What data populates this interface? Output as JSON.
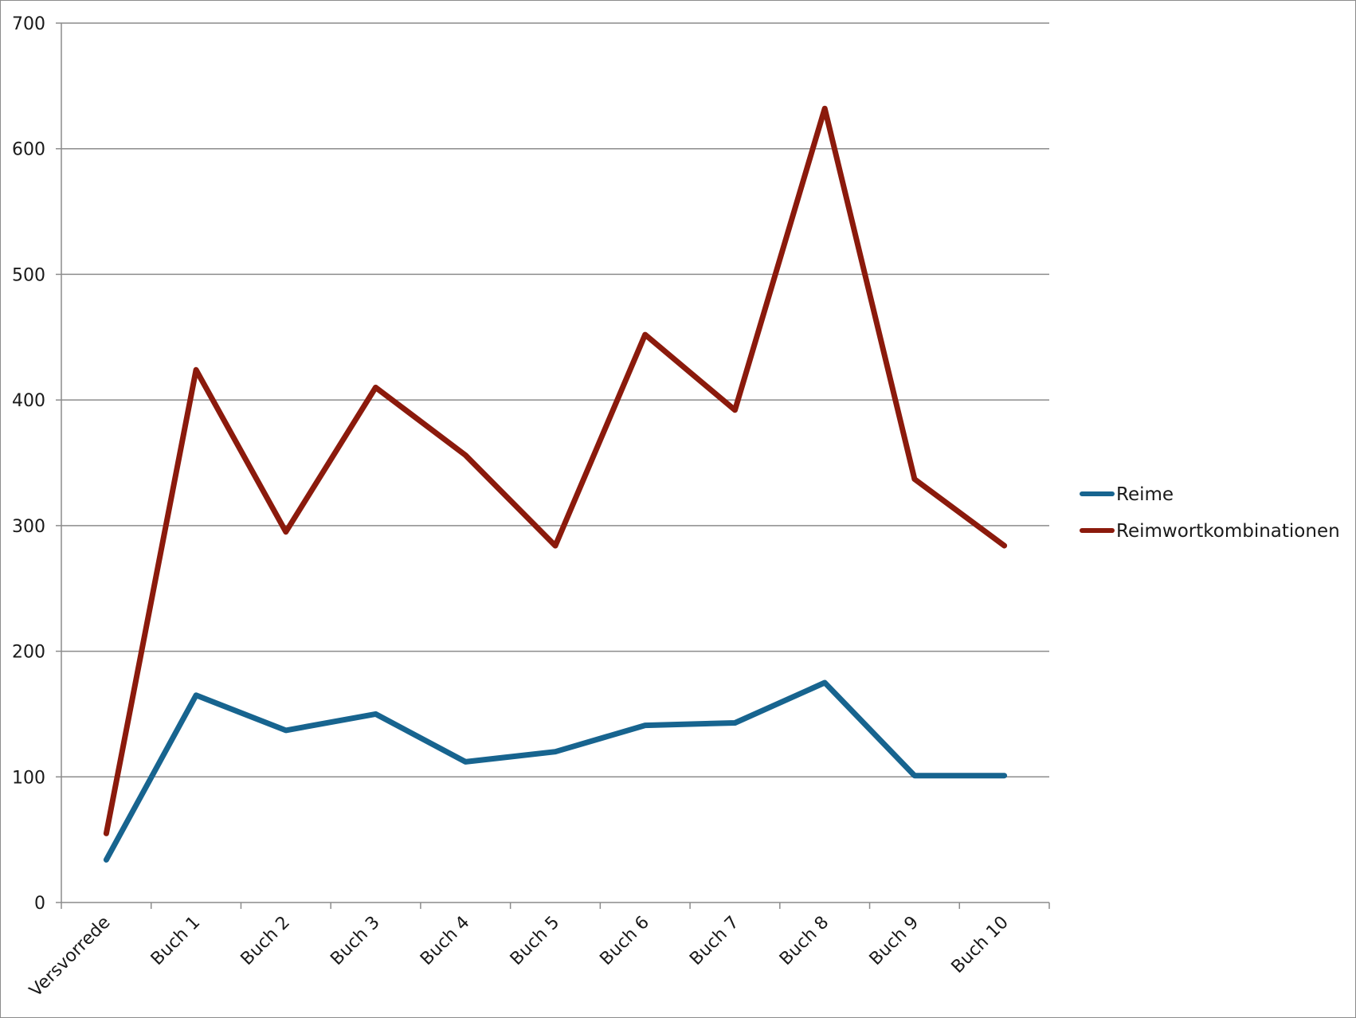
{
  "chart_data": {
    "type": "line",
    "title": "",
    "xlabel": "",
    "ylabel": "",
    "categories": [
      "Versvorrede",
      "Buch 1",
      "Buch 2",
      "Buch 3",
      "Buch 4",
      "Buch 5",
      "Buch 6",
      "Buch 7",
      "Buch 8",
      "Buch 9",
      "Buch 10"
    ],
    "series": [
      {
        "name": "Reime",
        "color": "#17648f",
        "values": [
          34,
          165,
          137,
          150,
          112,
          120,
          141,
          143,
          175,
          101,
          101
        ]
      },
      {
        "name": "Reimwortkombinationen",
        "color": "#8b1a0c",
        "values": [
          55,
          424,
          295,
          410,
          356,
          284,
          452,
          392,
          632,
          337,
          284
        ]
      }
    ],
    "ylim": [
      0,
      700
    ],
    "yticks": [
      0,
      100,
      200,
      300,
      400,
      500,
      600,
      700
    ],
    "grid": true,
    "gridline_color": "#8c8c8c",
    "legend_position": "right"
  }
}
